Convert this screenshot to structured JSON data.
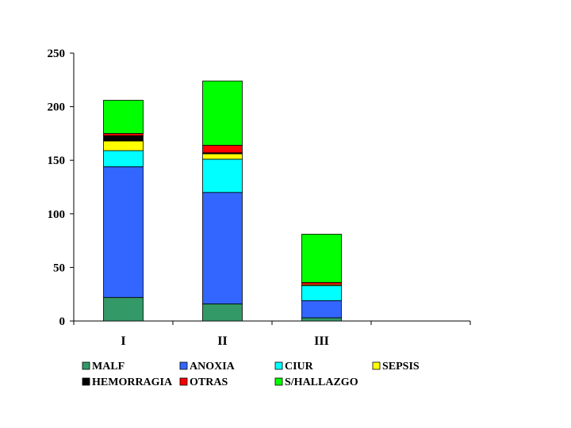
{
  "chart_data": {
    "type": "bar",
    "stacked": true,
    "title": "",
    "xlabel": "",
    "ylabel": "",
    "ylim": [
      0,
      250
    ],
    "yticks": [
      0,
      50,
      100,
      150,
      200,
      250
    ],
    "grid": false,
    "legend_position": "bottom",
    "categories": [
      "I",
      "II",
      "III",
      ""
    ],
    "series": [
      {
        "name": "MALF",
        "color": "#339966",
        "values": [
          22,
          16,
          3,
          0
        ]
      },
      {
        "name": "ANOXIA",
        "color": "#3366FF",
        "values": [
          122,
          104,
          16,
          0
        ]
      },
      {
        "name": "CIUR",
        "color": "#00FFFF",
        "values": [
          15,
          31,
          14,
          0
        ]
      },
      {
        "name": "SEPSIS",
        "color": "#FFFF00",
        "values": [
          9,
          5,
          1,
          0
        ]
      },
      {
        "name": "HEMORRAGIA",
        "color": "#000000",
        "values": [
          5,
          1,
          0,
          0
        ]
      },
      {
        "name": "OTRAS",
        "color": "#FF0000",
        "values": [
          2,
          7,
          2,
          0
        ]
      },
      {
        "name": "S/HALLAZGO",
        "color": "#00FF00",
        "values": [
          31,
          60,
          45,
          0
        ]
      }
    ]
  }
}
